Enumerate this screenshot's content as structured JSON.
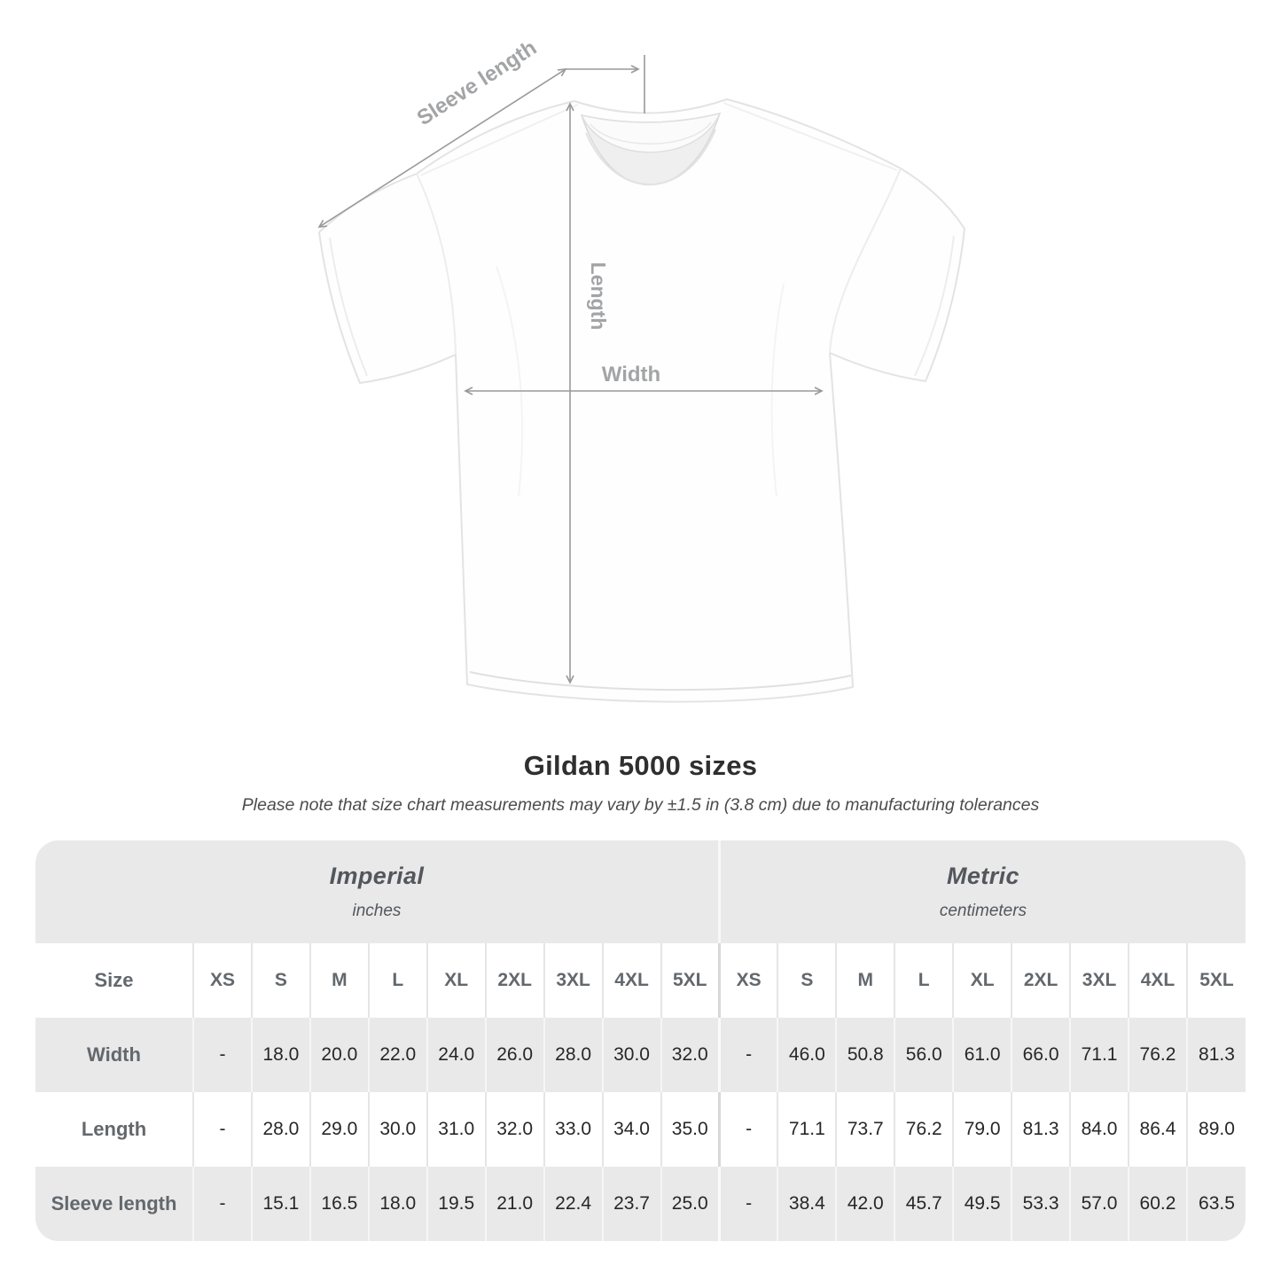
{
  "diagram": {
    "labels": {
      "sleeve_length": "Sleeve length",
      "length": "Length",
      "width": "Width"
    },
    "arrow_color": "#98999b",
    "label_color": "#a3a4a6"
  },
  "title": "Gildan 5000 sizes",
  "subtitle": "Please note that size chart measurements may vary by ±1.5 in (3.8 cm) due to manufacturing tolerances",
  "table": {
    "size_label": "Size",
    "sections": [
      {
        "label": "Imperial",
        "unit": "inches"
      },
      {
        "label": "Metric",
        "unit": "centimeters"
      }
    ],
    "sizes": [
      "XS",
      "S",
      "M",
      "L",
      "XL",
      "2XL",
      "3XL",
      "4XL",
      "5XL"
    ],
    "rows": [
      {
        "label": "Width",
        "imperial": [
          "-",
          "18.0",
          "20.0",
          "22.0",
          "24.0",
          "26.0",
          "28.0",
          "30.0",
          "32.0"
        ],
        "metric": [
          "-",
          "46.0",
          "50.8",
          "56.0",
          "61.0",
          "66.0",
          "71.1",
          "76.2",
          "81.3"
        ]
      },
      {
        "label": "Length",
        "imperial": [
          "-",
          "28.0",
          "29.0",
          "30.0",
          "31.0",
          "32.0",
          "33.0",
          "34.0",
          "35.0"
        ],
        "metric": [
          "-",
          "71.1",
          "73.7",
          "76.2",
          "79.0",
          "81.3",
          "84.0",
          "86.4",
          "89.0"
        ]
      },
      {
        "label": "Sleeve length",
        "imperial": [
          "-",
          "15.1",
          "16.5",
          "18.0",
          "19.5",
          "21.0",
          "22.4",
          "23.7",
          "25.0"
        ],
        "metric": [
          "-",
          "38.4",
          "42.0",
          "45.7",
          "49.5",
          "53.3",
          "57.0",
          "60.2",
          "63.5"
        ]
      }
    ]
  },
  "colors": {
    "band_gray": "#e9e9e9",
    "row_gray": "#e9e9e9",
    "row_white": "#ffffff",
    "header_text": "#63686d",
    "value_text": "#272727",
    "title_text": "#2f2f2f"
  }
}
